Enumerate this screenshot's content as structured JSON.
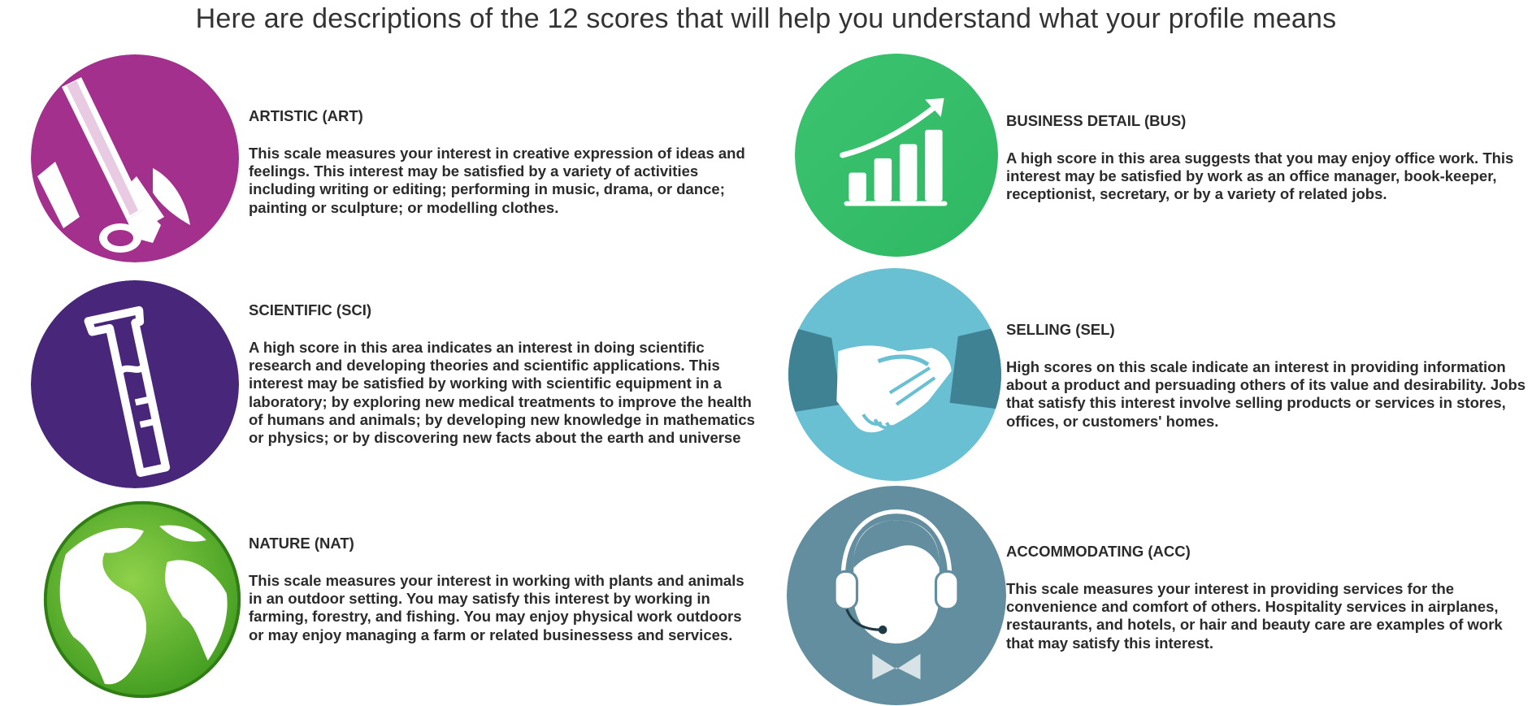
{
  "header": {
    "title": "Here are descriptions of the 12 scores that will help you understand what your profile means"
  },
  "colors": {
    "art": "#a3308c",
    "sci": "#48267a",
    "nat": "#5aac2b",
    "bus": "#3cc370",
    "sel": "#6ac0d3",
    "acc": "#628e9f",
    "text": "#2b2b2b"
  },
  "cards": {
    "art": {
      "icon": "paintbrush-icon",
      "title": "ARTISTIC (ART)",
      "body": "This scale measures your interest in creative expression of ideas and feelings. This interest may be satisfied by a variety of activities including writing or editing; performing in music, drama, or dance; painting or sculpture; or modelling clothes."
    },
    "sci": {
      "icon": "test-tube-icon",
      "title": "SCIENTIFIC (SCI)",
      "body": "A high score in this area indicates an interest in doing scientific research and developing theories and scientific applications. This interest may be satisfied by working with scientific equipment in a laboratory; by exploring new medical treatments to improve the health of humans and animals; by developing new knowledge in mathematics or physics; or by discovering new facts about the earth and universe"
    },
    "nat": {
      "icon": "globe-leaf-icon",
      "title": "NATURE (NAT)",
      "body": "This scale measures your interest in working with plants and animals in an outdoor setting. You may satisfy this interest by working in farming, forestry, and fishing. You may enjoy physical work outdoors or may enjoy managing a farm or related businessess and services."
    },
    "bus": {
      "icon": "growth-chart-icon",
      "title": "BUSINESS DETAIL (BUS)",
      "body": "A high score in this area suggests that you may enjoy office work. This interest may be satisfied by work as an office manager, book-keeper, receptionist, secretary, or by a variety of related jobs."
    },
    "sel": {
      "icon": "handshake-icon",
      "title": "SELLING (SEL)",
      "body": "High scores on this scale indicate an interest in providing information about a product and persuading others of its value and desirability. Jobs that satisfy this interest involve selling products or services in stores, offices, or customers' homes."
    },
    "acc": {
      "icon": "headset-agent-icon",
      "title": "ACCOMMODATING (ACC)",
      "body": "This scale measures your interest in providing services for the convenience and comfort of others. Hospitality services in airplanes, restaurants, and hotels, or hair and beauty care are examples of work that may satisfy this interest."
    }
  }
}
